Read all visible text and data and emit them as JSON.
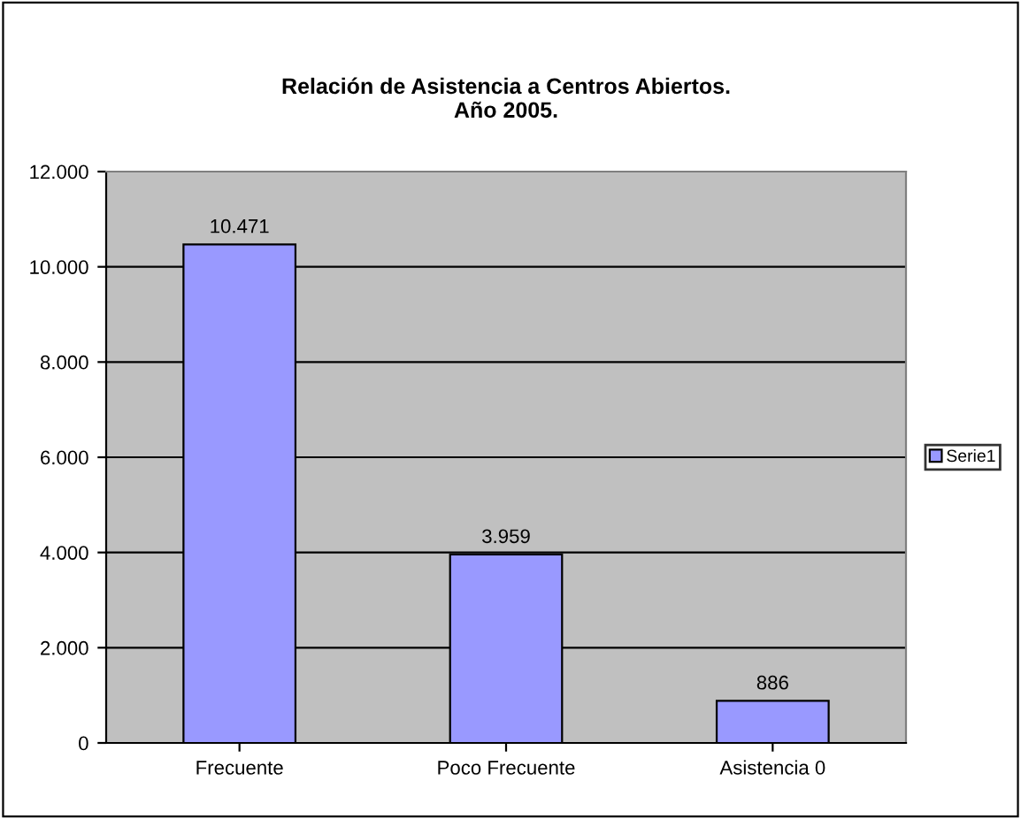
{
  "chart_data": {
    "type": "bar",
    "title": "Relación de Asistencia a Centros Abiertos.\nAño 2005.",
    "categories": [
      "Frecuente",
      "Poco Frecuente",
      "Asistencia 0"
    ],
    "series": [
      {
        "name": "Serie1",
        "color": "#9999ff",
        "values": [
          10471,
          3959,
          886
        ],
        "value_labels": [
          "10.471",
          "3.959",
          "886"
        ]
      }
    ],
    "ylim": [
      0,
      12000
    ],
    "yticks": [
      {
        "value": 0,
        "label": "0"
      },
      {
        "value": 2000,
        "label": "2.000"
      },
      {
        "value": 4000,
        "label": "4.000"
      },
      {
        "value": 6000,
        "label": "6.000"
      },
      {
        "value": 8000,
        "label": "8.000"
      },
      {
        "value": 10000,
        "label": "10.000"
      },
      {
        "value": 12000,
        "label": "12.000"
      }
    ],
    "grid": "y",
    "legend": "right"
  }
}
